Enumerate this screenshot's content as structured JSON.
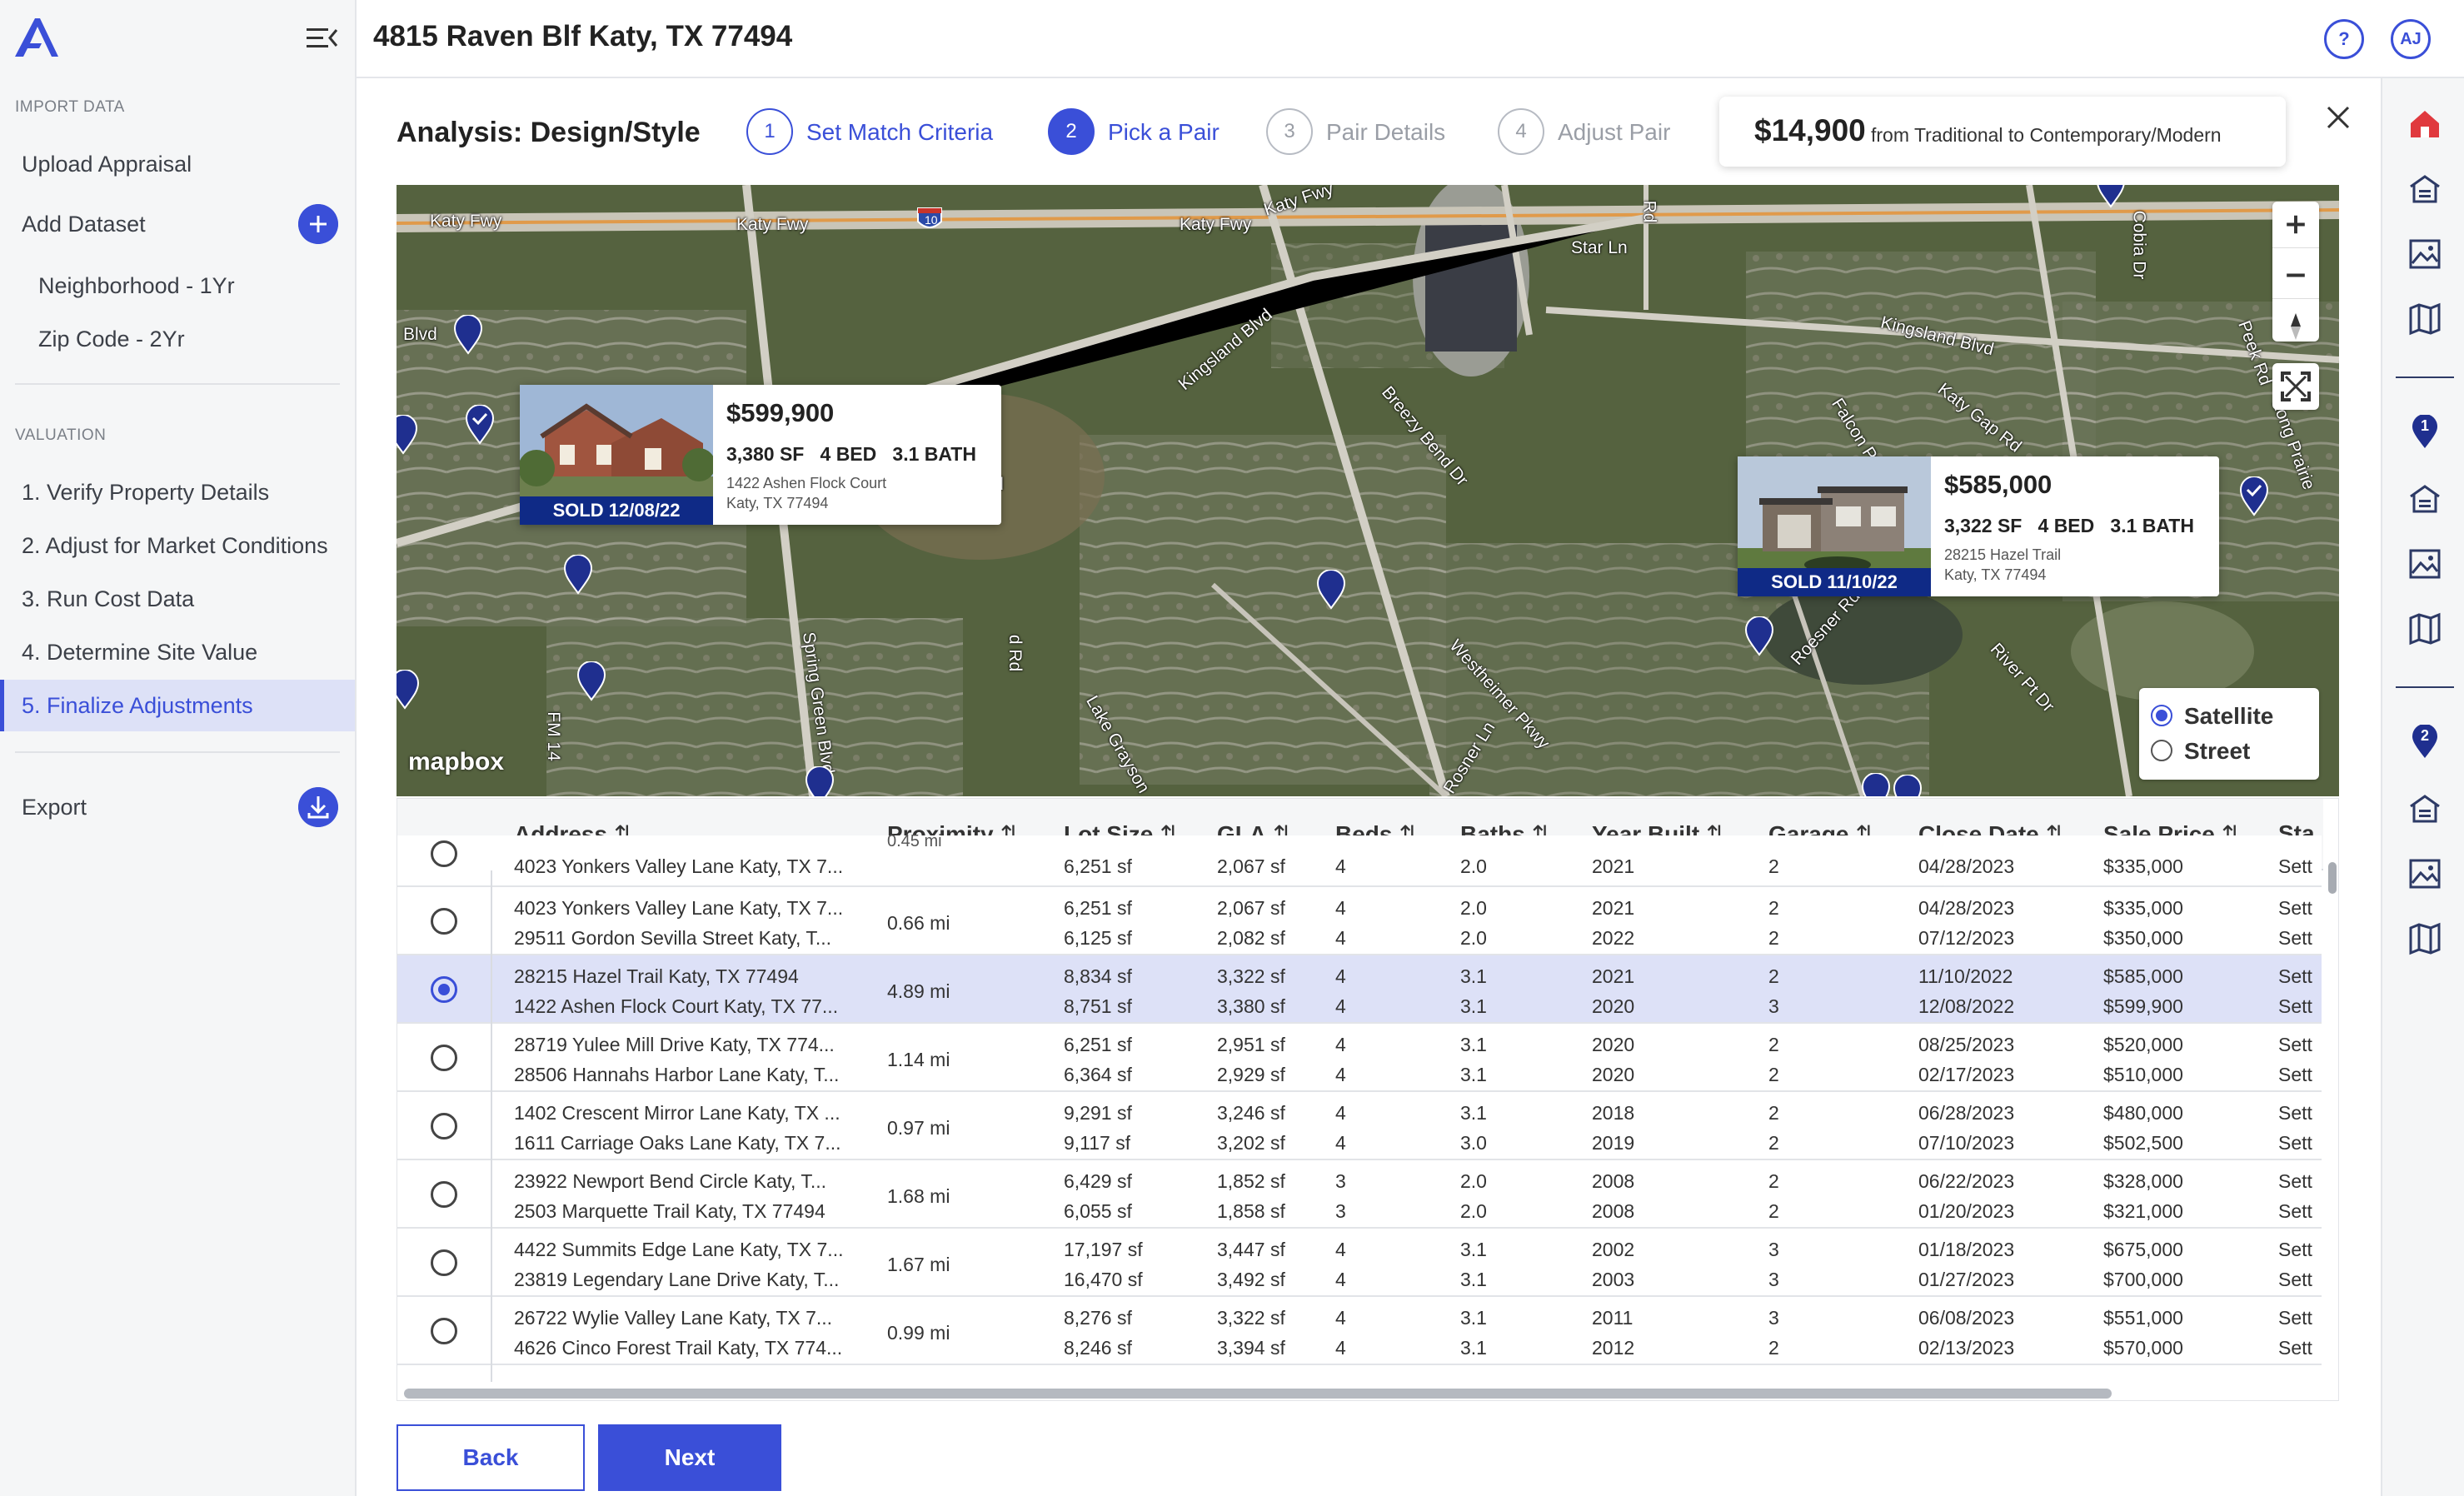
{
  "header": {
    "title": "4815 Raven Blf Katy, TX 77494",
    "help_label": "?",
    "avatar_initials": "AJ"
  },
  "sidebar": {
    "import_section": "IMPORT DATA",
    "upload_appraisal": "Upload Appraisal",
    "add_dataset": "Add Dataset",
    "datasets": [
      "Neighborhood - 1Yr",
      "Zip Code - 2Yr"
    ],
    "valuation_section": "VALUATION",
    "valuation_items": [
      "1. Verify Property Details",
      "2. Adjust for Market Conditions",
      "3. Run Cost Data",
      "4. Determine Site Value",
      "5. Finalize Adjustments"
    ],
    "active_item": 4,
    "export": "Export"
  },
  "analysis": {
    "title": "Analysis: Design/Style",
    "steps": [
      {
        "num": "1",
        "label": "Set Match Criteria",
        "state": "done"
      },
      {
        "num": "2",
        "label": "Pick a Pair",
        "state": "active"
      },
      {
        "num": "3",
        "label": "Pair Details",
        "state": "disabled"
      },
      {
        "num": "4",
        "label": "Adjust Pair",
        "state": "disabled"
      }
    ],
    "adjustment_amount": "$14,900",
    "adjustment_desc": "from Traditional to Contemporary/Modern"
  },
  "map": {
    "road_labels": [
      "Katy Fwy",
      "Katy Fwy",
      "Katy Fwy",
      "Katy Fwy",
      "Katy Fwy",
      "Kingsland Blvd",
      "Kingsland Blvd",
      "Star Ln",
      "Breezy Bend Dr",
      "Westheimer Pkwy",
      "Roesner Rd",
      "Rosner Ln",
      "Spring Green Blvd",
      "Lake Grayson",
      "Falcon Pt Dr",
      "Katy Gap Rd",
      "River Pt Dr",
      "Cobia Dr",
      "Peek Rd",
      "Long Prairie",
      "FM 14",
      "Blvd",
      "lvd",
      "Rd",
      "d Rd"
    ],
    "highway_shield": "10",
    "attribution": "mapbox",
    "layers": {
      "satellite": "Satellite",
      "street": "Street",
      "selected": "satellite"
    },
    "cards": [
      {
        "price": "$599,900",
        "specs": "3,380 SF   4 BED   3.1 BATH",
        "addr1": "1422 Ashen Flock Court",
        "addr2": "Katy, TX 77494",
        "sold": "SOLD 12/08/22"
      },
      {
        "price": "$585,000",
        "specs": "3,322 SF   4 BED   3.1 BATH",
        "addr1": "28215 Hazel Trail",
        "addr2": "Katy, TX 77494",
        "sold": "SOLD 11/10/22"
      }
    ],
    "colors": {
      "pin": "#1f2f8f",
      "accent": "#3a4fd8"
    }
  },
  "table": {
    "columns": [
      "Address",
      "Proximity",
      "Lot Size",
      "GLA",
      "Beds",
      "Baths",
      "Year Built",
      "Garage",
      "Close Date",
      "Sale Price",
      "Sta"
    ],
    "partial_row": {
      "address": "4023 Yonkers Valley Lane Katy, TX 7...",
      "proximity": "0.45 mi",
      "lot": "6,251 sf",
      "gla": "2,067 sf",
      "beds": "4",
      "baths": "2.0",
      "year": "2021",
      "garage": "2",
      "close": "04/28/2023",
      "price": "$335,000",
      "status": "Sett"
    },
    "rows": [
      {
        "selected": false,
        "proximity": "0.66 mi",
        "a": {
          "address": "4023 Yonkers Valley Lane Katy, TX 7...",
          "lot": "6,251 sf",
          "gla": "2,067 sf",
          "beds": "4",
          "baths": "2.0",
          "year": "2021",
          "garage": "2",
          "close": "04/28/2023",
          "price": "$335,000",
          "status": "Sett"
        },
        "b": {
          "address": "29511 Gordon Sevilla Street Katy, T...",
          "lot": "6,125 sf",
          "gla": "2,082 sf",
          "beds": "4",
          "baths": "2.0",
          "year": "2022",
          "garage": "2",
          "close": "07/12/2023",
          "price": "$350,000",
          "status": "Sett"
        }
      },
      {
        "selected": true,
        "proximity": "4.89 mi",
        "a": {
          "address": "28215 Hazel Trail Katy, TX 77494",
          "lot": "8,834 sf",
          "gla": "3,322 sf",
          "beds": "4",
          "baths": "3.1",
          "year": "2021",
          "garage": "2",
          "close": "11/10/2022",
          "price": "$585,000",
          "status": "Sett"
        },
        "b": {
          "address": "1422 Ashen Flock Court Katy, TX 77...",
          "lot": "8,751 sf",
          "gla": "3,380 sf",
          "beds": "4",
          "baths": "3.1",
          "year": "2020",
          "garage": "3",
          "close": "12/08/2022",
          "price": "$599,900",
          "status": "Sett"
        }
      },
      {
        "selected": false,
        "proximity": "1.14 mi",
        "a": {
          "address": "28719 Yulee Mill Drive Katy, TX 774...",
          "lot": "6,251 sf",
          "gla": "2,951 sf",
          "beds": "4",
          "baths": "3.1",
          "year": "2020",
          "garage": "2",
          "close": "08/25/2023",
          "price": "$520,000",
          "status": "Sett"
        },
        "b": {
          "address": "28506 Hannahs Harbor Lane Katy, T...",
          "lot": "6,364 sf",
          "gla": "2,929 sf",
          "beds": "4",
          "baths": "3.1",
          "year": "2020",
          "garage": "2",
          "close": "02/17/2023",
          "price": "$510,000",
          "status": "Sett"
        }
      },
      {
        "selected": false,
        "proximity": "0.97 mi",
        "a": {
          "address": "1402 Crescent Mirror Lane Katy, TX ...",
          "lot": "9,291 sf",
          "gla": "3,246 sf",
          "beds": "4",
          "baths": "3.1",
          "year": "2018",
          "garage": "2",
          "close": "06/28/2023",
          "price": "$480,000",
          "status": "Sett"
        },
        "b": {
          "address": "1611 Carriage Oaks Lane Katy, TX 7...",
          "lot": "9,117 sf",
          "gla": "3,202 sf",
          "beds": "4",
          "baths": "3.0",
          "year": "2019",
          "garage": "2",
          "close": "07/10/2023",
          "price": "$502,500",
          "status": "Sett"
        }
      },
      {
        "selected": false,
        "proximity": "1.68 mi",
        "a": {
          "address": "23922 Newport Bend Circle Katy, T...",
          "lot": "6,429 sf",
          "gla": "1,852 sf",
          "beds": "3",
          "baths": "2.0",
          "year": "2008",
          "garage": "2",
          "close": "06/22/2023",
          "price": "$328,000",
          "status": "Sett"
        },
        "b": {
          "address": "2503 Marquette Trail Katy, TX 77494",
          "lot": "6,055 sf",
          "gla": "1,858 sf",
          "beds": "3",
          "baths": "2.0",
          "year": "2008",
          "garage": "2",
          "close": "01/20/2023",
          "price": "$321,000",
          "status": "Sett"
        }
      },
      {
        "selected": false,
        "proximity": "1.67 mi",
        "a": {
          "address": "4422 Summits Edge Lane Katy, TX 7...",
          "lot": "17,197 sf",
          "gla": "3,447 sf",
          "beds": "4",
          "baths": "3.1",
          "year": "2002",
          "garage": "3",
          "close": "01/18/2023",
          "price": "$675,000",
          "status": "Sett"
        },
        "b": {
          "address": "23819 Legendary Lane Drive Katy, T...",
          "lot": "16,470 sf",
          "gla": "3,492 sf",
          "beds": "4",
          "baths": "3.1",
          "year": "2003",
          "garage": "3",
          "close": "01/27/2023",
          "price": "$700,000",
          "status": "Sett"
        }
      },
      {
        "selected": false,
        "proximity": "0.99 mi",
        "a": {
          "address": "26722 Wylie Valley Lane Katy, TX 7...",
          "lot": "8,276 sf",
          "gla": "3,322 sf",
          "beds": "4",
          "baths": "3.1",
          "year": "2011",
          "garage": "3",
          "close": "06/08/2023",
          "price": "$551,000",
          "status": "Sett"
        },
        "b": {
          "address": "4626 Cinco Forest Trail Katy, TX 774...",
          "lot": "8,246 sf",
          "gla": "3,394 sf",
          "beds": "4",
          "baths": "3.1",
          "year": "2012",
          "garage": "2",
          "close": "02/13/2023",
          "price": "$570,000",
          "status": "Sett"
        }
      }
    ]
  },
  "footer": {
    "back": "Back",
    "next": "Next"
  },
  "rail": {
    "badges": [
      "1",
      "2"
    ],
    "icons": [
      "home-icon",
      "property-list-icon",
      "image-icon",
      "map-icon"
    ]
  }
}
